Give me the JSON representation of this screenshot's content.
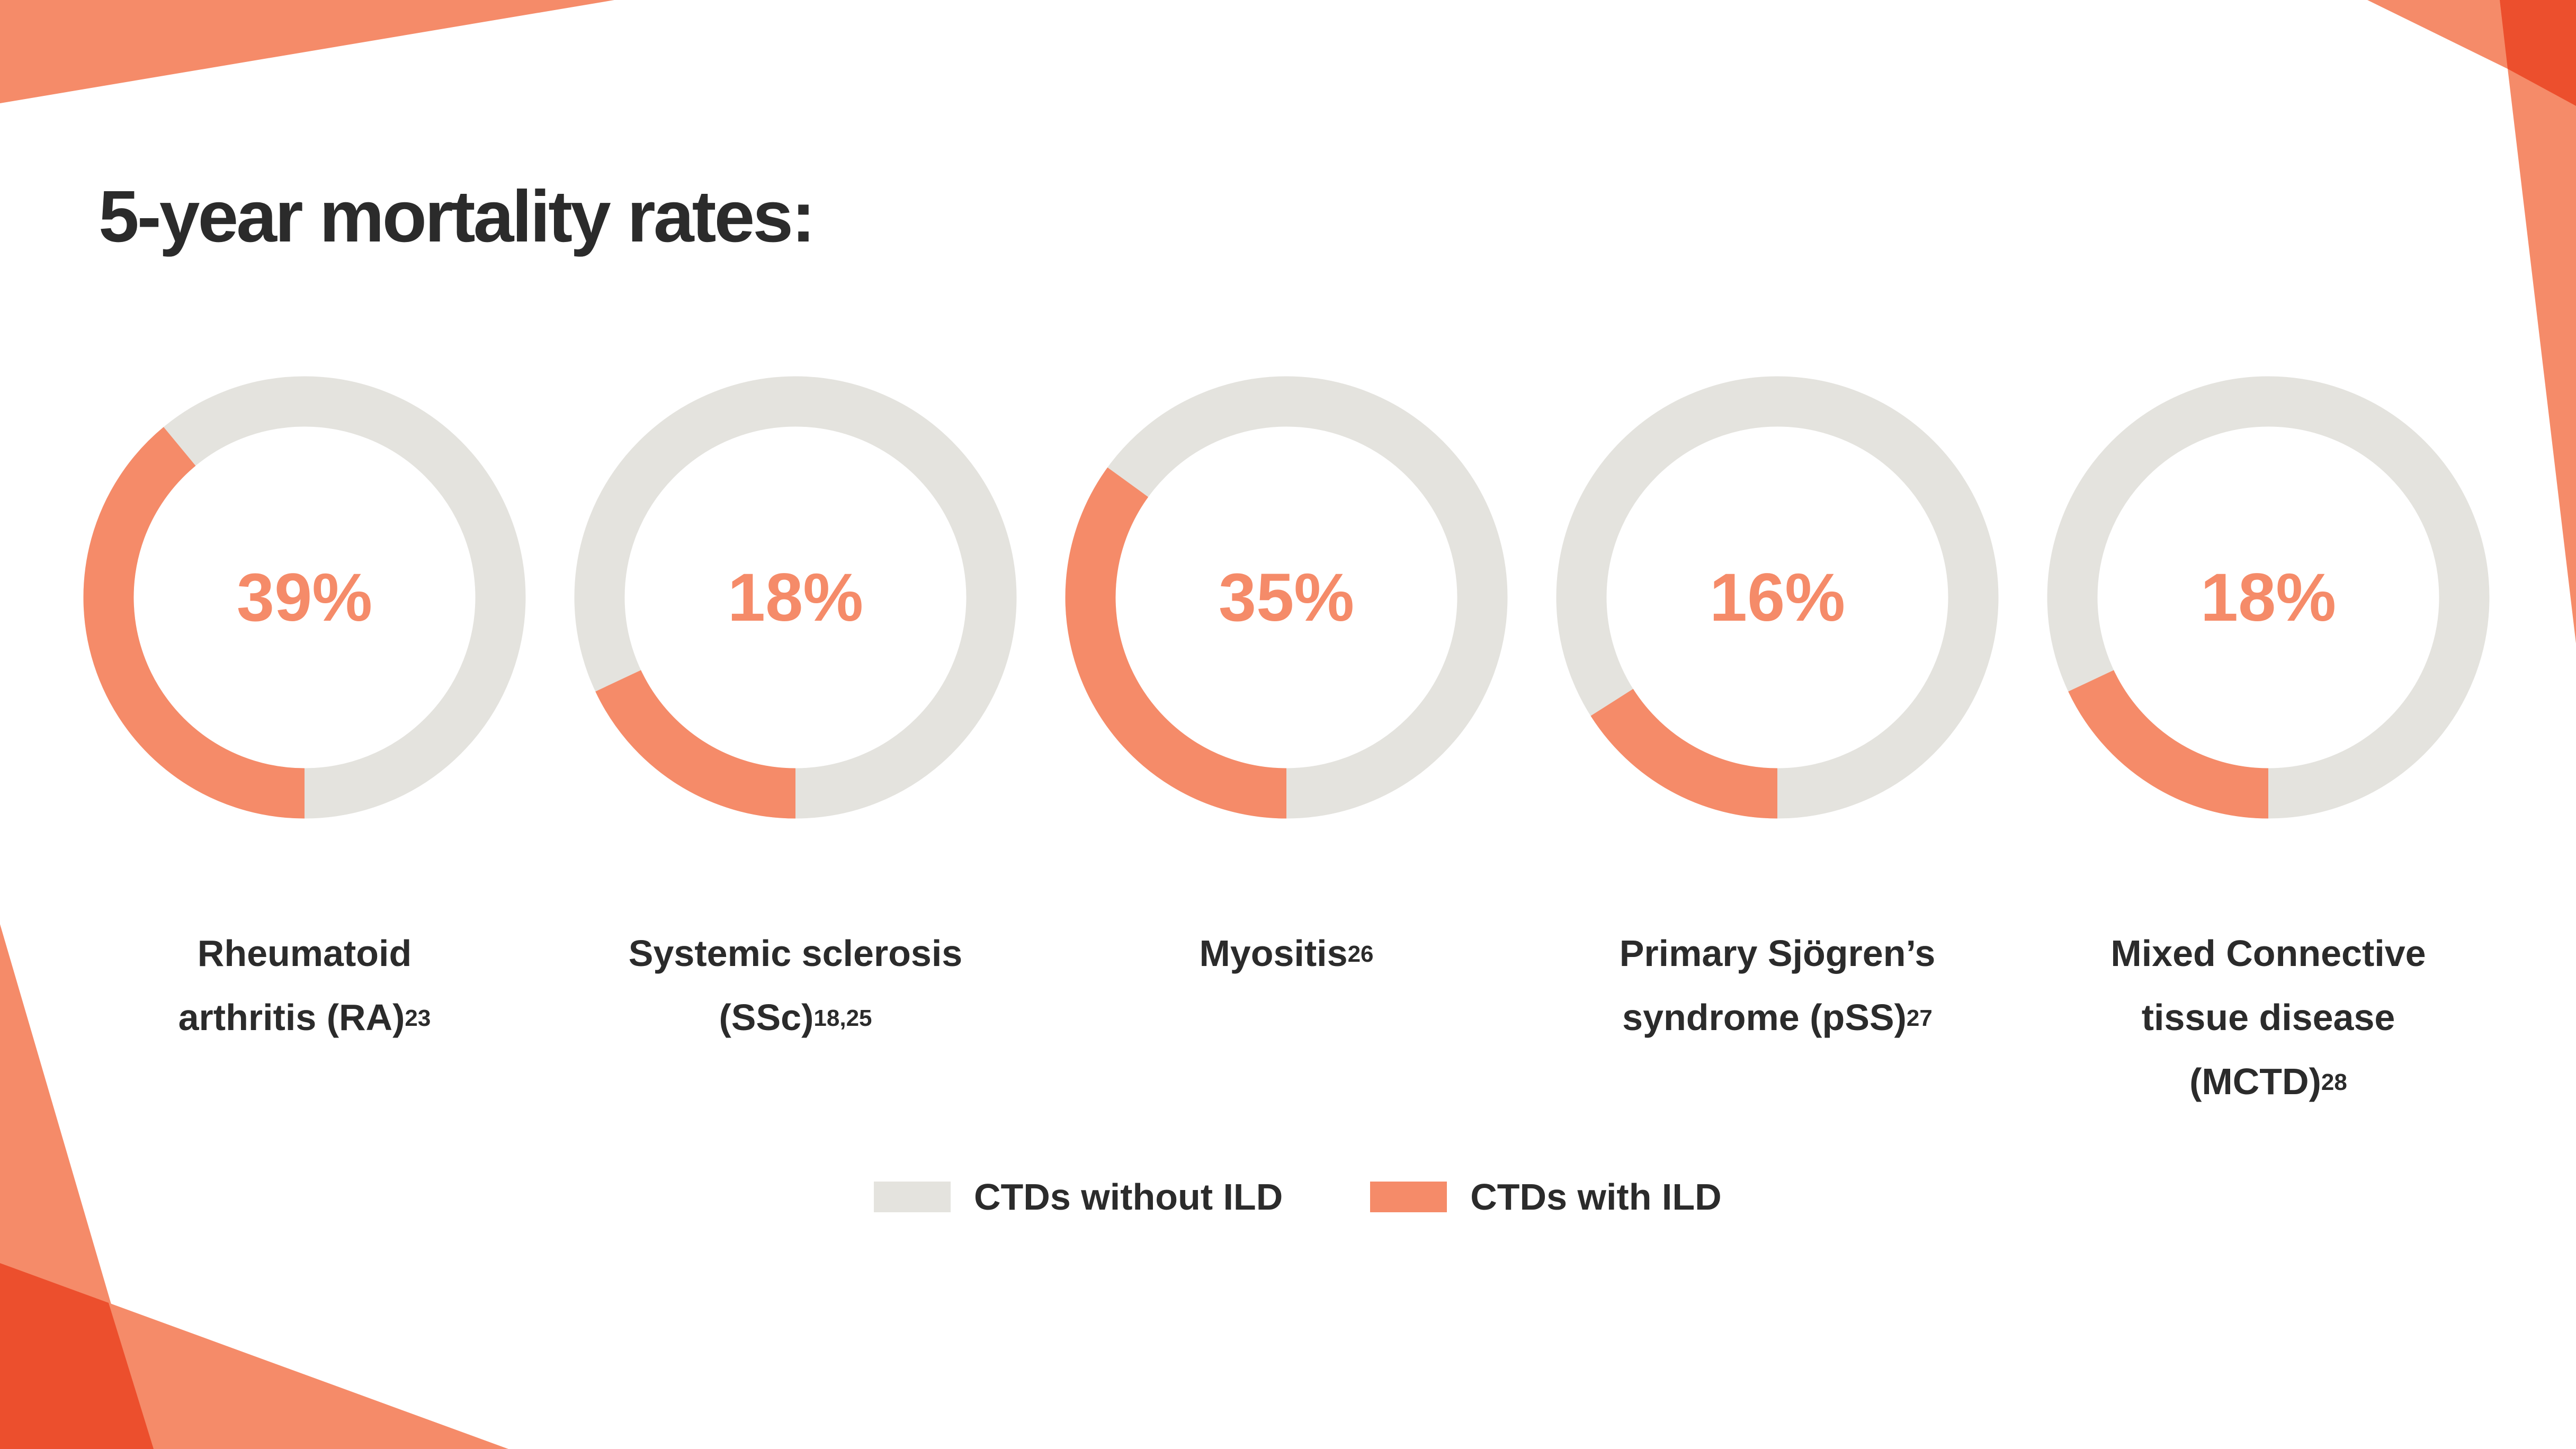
{
  "colors": {
    "without_ild": "#e4e3de",
    "with_ild": "#f58b69",
    "accent_dark": "#ec4f2d",
    "text": "#2b2b2b"
  },
  "title": "5-year mortality rates:",
  "legend": {
    "items": [
      {
        "label": "CTDs without ILD",
        "color": "#e4e3de"
      },
      {
        "label": "CTDs with ILD",
        "color": "#f58b69"
      }
    ]
  },
  "chart_data": {
    "type": "pie",
    "variant": "donut",
    "title": "5-year mortality rates:",
    "legend": [
      "CTDs without ILD",
      "CTDs with ILD"
    ],
    "series": [
      {
        "name": "Rheumatoid arthritis (RA)",
        "label_lines": [
          "Rheumatoid",
          "arthritis (RA)"
        ],
        "ref": "23",
        "value": 39,
        "value_label": "39%"
      },
      {
        "name": "Systemic sclerosis (SSc)",
        "label_lines": [
          "Systemic sclerosis",
          "(SSc)"
        ],
        "ref": "18,25",
        "value": 18,
        "value_label": "18%"
      },
      {
        "name": "Myositis",
        "label_lines": [
          "Myositis"
        ],
        "ref": "26",
        "value": 35,
        "value_label": "35%"
      },
      {
        "name": "Primary Sjögren’s syndrome (pSS)",
        "label_lines": [
          "Primary Sjögren’s",
          "syndrome (pSS)"
        ],
        "ref": "27",
        "value": 16,
        "value_label": "16%"
      },
      {
        "name": "Mixed Connective tissue disease (MCTD)",
        "label_lines": [
          "Mixed Connective",
          "tissue disease",
          "(MCTD)"
        ],
        "ref": "28",
        "value": 18,
        "value_label": "18%"
      }
    ]
  }
}
